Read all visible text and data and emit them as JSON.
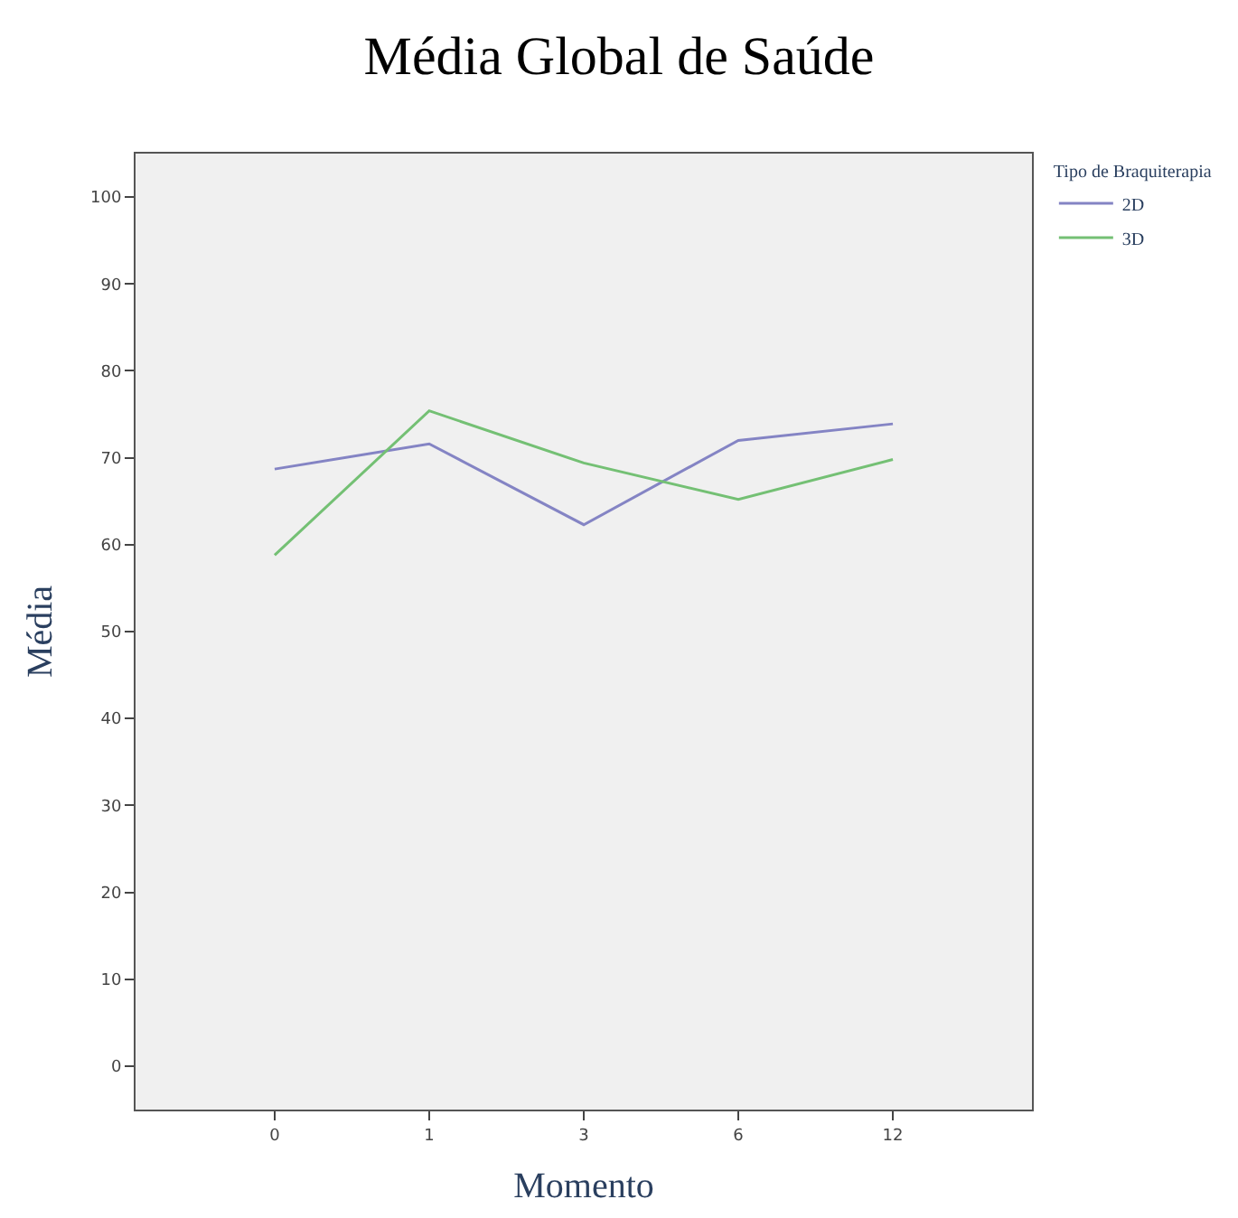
{
  "chart_data": {
    "type": "line",
    "title": "Média Global de Saúde",
    "xlabel": "Momento",
    "ylabel": "Média",
    "legend_title": "Tipo de Braquiterapia",
    "categories": [
      "0",
      "1",
      "3",
      "6",
      "12"
    ],
    "series": [
      {
        "name": "2D",
        "color": "#8484c4",
        "values": [
          68.7,
          71.6,
          62.3,
          72.0,
          73.9
        ]
      },
      {
        "name": "3D",
        "color": "#74c074",
        "values": [
          58.8,
          75.4,
          69.4,
          65.2,
          69.8
        ]
      }
    ],
    "ylim": [
      -5,
      105
    ],
    "yticks": [
      0,
      10,
      20,
      30,
      40,
      50,
      60,
      70,
      80,
      90,
      100
    ],
    "grid": false,
    "legend": "top right",
    "marker": "none",
    "line_style": "solid"
  }
}
